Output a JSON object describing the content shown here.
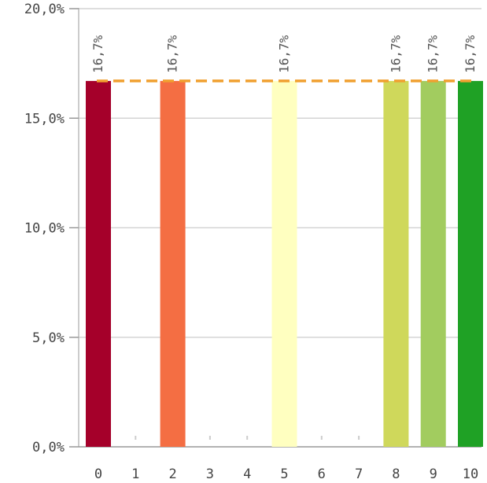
{
  "chart_data": {
    "type": "bar",
    "categories": [
      "0",
      "1",
      "2",
      "3",
      "4",
      "5",
      "6",
      "7",
      "8",
      "9",
      "10"
    ],
    "values": [
      16.7,
      0,
      16.7,
      0,
      0,
      16.7,
      0,
      0,
      16.7,
      16.7,
      16.7
    ],
    "data_labels": [
      "16,7%",
      "",
      "16,7%",
      "",
      "",
      "16,7%",
      "",
      "",
      "16,7%",
      "16,7%",
      "16,7%"
    ],
    "bar_colors": [
      "#a5002a",
      "#cccccc",
      "#f46e43",
      "#cccccc",
      "#cccccc",
      "#ffffc0",
      "#cccccc",
      "#cccccc",
      "#cfd85b",
      "#a2cc5f",
      "#1fa125"
    ],
    "yticks": [
      {
        "value": 0,
        "label": "0,0%"
      },
      {
        "value": 5,
        "label": "5,0%"
      },
      {
        "value": 10,
        "label": "10,0%"
      },
      {
        "value": 15,
        "label": "15,0%"
      },
      {
        "value": 20,
        "label": "20,0%"
      }
    ],
    "ylim": [
      0,
      20
    ],
    "reference_line": {
      "value": 16.7,
      "color": "#f0a030",
      "style": "dashed"
    },
    "title": "",
    "xlabel": "",
    "ylabel": "",
    "grid": true,
    "legend": "none"
  }
}
